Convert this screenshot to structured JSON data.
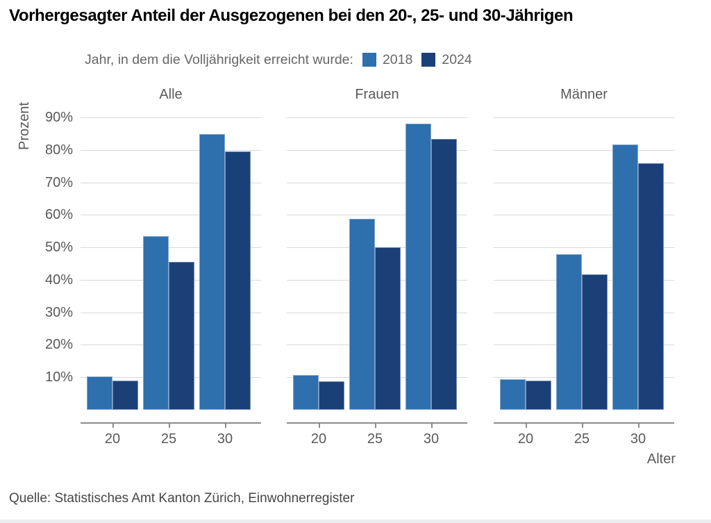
{
  "title": "Vorhergesagter Anteil der Ausgezogenen bei den 20-, 25- und 30-Jährigen",
  "legend": {
    "label": "Jahr, in dem die Volljährigkeit erreicht wurde:",
    "items": [
      {
        "label": "2018",
        "color": "#2e6fad"
      },
      {
        "label": "2024",
        "color": "#1b4078"
      }
    ]
  },
  "chart_data": {
    "type": "bar",
    "title": "Vorhergesagter Anteil der Ausgezogenen bei den 20-, 25- und 30-Jährigen",
    "ylabel": "Prozent",
    "xlabel": "Alter",
    "ylim": [
      0,
      93
    ],
    "grid": true,
    "legend_position": "top",
    "y_tick_labels": [
      "90%",
      "80%",
      "70%",
      "60%",
      "50%",
      "40%",
      "30%",
      "20%",
      "10%"
    ],
    "categories": [
      "20",
      "25",
      "30"
    ],
    "facets": [
      {
        "title": "Alle",
        "series": [
          {
            "name": "2018",
            "values": [
              10.2,
              53.4,
              84.9
            ]
          },
          {
            "name": "2024",
            "values": [
              9.0,
              45.6,
              79.5
            ]
          }
        ]
      },
      {
        "title": "Frauen",
        "series": [
          {
            "name": "2018",
            "values": [
              10.7,
              58.7,
              88.0
            ]
          },
          {
            "name": "2024",
            "values": [
              8.8,
              50.0,
              83.3
            ]
          }
        ]
      },
      {
        "title": "Männer",
        "series": [
          {
            "name": "2018",
            "values": [
              9.5,
              48.0,
              81.6
            ]
          },
          {
            "name": "2024",
            "values": [
              9.0,
              41.6,
              76.0
            ]
          }
        ]
      }
    ]
  },
  "colors": {
    "series_2018": "#2e6fad",
    "series_2024": "#1b4078",
    "gridline": "#d8d8d8",
    "axis": "#8a8a8a",
    "muted_text": "#595959"
  },
  "source": "Quelle: Statistisches Amt Kanton Zürich, Einwohnerregister"
}
